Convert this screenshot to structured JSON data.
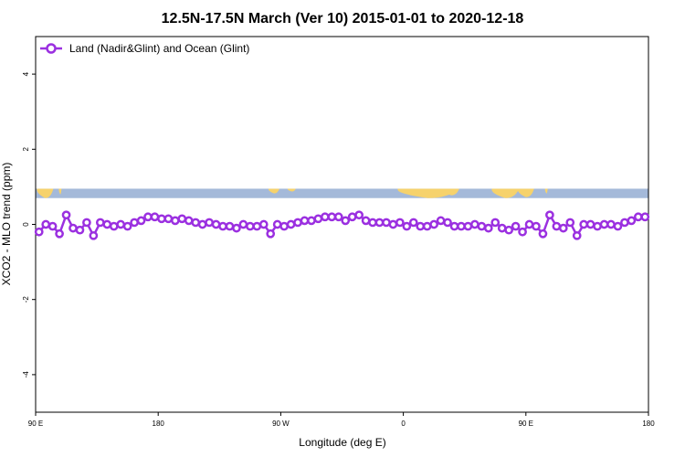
{
  "chart_data": {
    "type": "line",
    "title": "12.5N-17.5N March (Ver 10)   2015-01-01 to 2020-12-18",
    "xlabel": "Longitude (deg E)",
    "ylabel": "XCO2 - MLO trend (ppm)",
    "xlim": [
      90,
      540
    ],
    "ylim": [
      -5,
      5
    ],
    "x_ticks": [
      {
        "value": 90,
        "label": "90 E"
      },
      {
        "value": 180,
        "label": "180"
      },
      {
        "value": 270,
        "label": "90 W"
      },
      {
        "value": 360,
        "label": "0"
      },
      {
        "value": 450,
        "label": "90 E"
      },
      {
        "value": 540,
        "label": "180"
      }
    ],
    "y_ticks": [
      -4,
      -2,
      0,
      2,
      4
    ],
    "grid": false,
    "legend_position": "top-left",
    "land_mask_strip": {
      "y_range": [
        0.7,
        0.95
      ],
      "ocean_color": "#a4b9d9",
      "land_color": "#f6d26c"
    },
    "series": [
      {
        "name": "Land (Nadir&Glint) and Ocean (Glint)",
        "color": "#9b30e0",
        "x": [
          92.5,
          97.5,
          102.5,
          107.5,
          112.5,
          117.5,
          122.5,
          127.5,
          132.5,
          137.5,
          142.5,
          147.5,
          152.5,
          157.5,
          162.5,
          167.5,
          172.5,
          177.5,
          182.5,
          187.5,
          192.5,
          197.5,
          202.5,
          207.5,
          212.5,
          217.5,
          222.5,
          227.5,
          232.5,
          237.5,
          242.5,
          247.5,
          252.5,
          257.5,
          262.5,
          267.5,
          272.5,
          277.5,
          282.5,
          287.5,
          292.5,
          297.5,
          302.5,
          307.5,
          312.5,
          317.5,
          322.5,
          327.5,
          332.5,
          337.5,
          342.5,
          347.5,
          352.5,
          357.5,
          362.5,
          367.5,
          372.5,
          377.5,
          382.5,
          387.5,
          392.5,
          397.5,
          402.5,
          407.5,
          412.5,
          417.5,
          422.5,
          427.5,
          432.5,
          437.5,
          442.5,
          447.5,
          452.5,
          457.5,
          462.5,
          467.5,
          472.5,
          477.5,
          482.5,
          487.5,
          492.5,
          497.5,
          502.5,
          507.5,
          512.5,
          517.5,
          522.5,
          527.5,
          532.5,
          537.5
        ],
        "values": [
          -0.2,
          0.0,
          -0.05,
          -0.25,
          0.25,
          -0.1,
          -0.15,
          0.05,
          -0.3,
          0.05,
          0.0,
          -0.05,
          0.0,
          -0.05,
          0.05,
          0.1,
          0.2,
          0.2,
          0.15,
          0.15,
          0.1,
          0.15,
          0.1,
          0.05,
          0.0,
          0.05,
          0.0,
          -0.05,
          -0.05,
          -0.1,
          0.0,
          -0.05,
          -0.05,
          0.0,
          -0.25,
          0.0,
          -0.05,
          0.0,
          0.05,
          0.1,
          0.1,
          0.15,
          0.2,
          0.2,
          0.2,
          0.1,
          0.2,
          0.25,
          0.1,
          0.05,
          0.05,
          0.05,
          0.0,
          0.05,
          -0.05,
          0.05,
          -0.05,
          -0.05,
          0.0,
          0.1,
          0.05,
          -0.05,
          -0.05,
          -0.05,
          0.0,
          -0.05,
          -0.1,
          0.05,
          -0.1,
          -0.15,
          -0.05,
          -0.2,
          0.0,
          -0.05,
          -0.25,
          0.25,
          -0.05,
          -0.1,
          0.05,
          -0.3,
          0.0,
          0.0,
          -0.05,
          0.0,
          0.0,
          -0.05,
          0.05,
          0.1,
          0.2,
          0.2
        ]
      }
    ]
  }
}
